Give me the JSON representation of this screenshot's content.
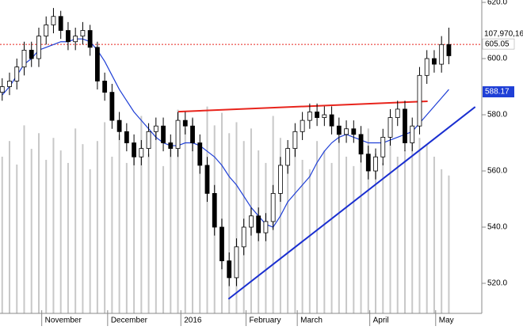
{
  "chart_data": {
    "type": "candlestick",
    "xlim": [
      -0.3,
      65.5
    ],
    "ylim": [
      509.3,
      620.85
    ],
    "yticks": [
      {
        "value": 520,
        "label": "520.0"
      },
      {
        "value": 540,
        "label": "540.0"
      },
      {
        "value": 560,
        "label": "560.0"
      },
      {
        "value": 580,
        "label": "580.0"
      },
      {
        "value": 600,
        "label": "600.0"
      },
      {
        "value": 620,
        "label": "620.0"
      }
    ],
    "xticks": [
      {
        "value": 5.4,
        "label": "November"
      },
      {
        "value": 14.4,
        "label": "December"
      },
      {
        "value": 24.4,
        "label": "2016"
      },
      {
        "value": 33.3,
        "label": "February"
      },
      {
        "value": 40.3,
        "label": "March"
      },
      {
        "value": 50.2,
        "label": "April"
      },
      {
        "value": 59.2,
        "label": "May"
      }
    ],
    "open": [
      588,
      590,
      592,
      597,
      603,
      600,
      608,
      612,
      615,
      610,
      606,
      608,
      610,
      604,
      592,
      588,
      578,
      574,
      570,
      565,
      568,
      574,
      576,
      570,
      568,
      578,
      576,
      570,
      562,
      552,
      540,
      528,
      522,
      533,
      540,
      544,
      538,
      542,
      552,
      562,
      568,
      574,
      578,
      581,
      579,
      580,
      576,
      573,
      575,
      573,
      566,
      560,
      565,
      572,
      579,
      582,
      570,
      576,
      594,
      600,
      598,
      605
    ],
    "high": [
      593,
      595,
      600,
      606,
      606,
      611,
      615,
      618,
      617,
      613,
      611,
      613,
      612,
      606,
      595,
      591,
      581,
      577,
      573,
      571,
      577,
      579,
      579,
      573,
      581,
      581,
      579,
      573,
      565,
      555,
      543,
      531,
      536,
      543,
      547,
      547,
      545,
      555,
      565,
      571,
      577,
      581,
      584,
      584,
      583,
      583,
      579,
      578,
      578,
      576,
      569,
      568,
      575,
      582,
      585,
      585,
      579,
      597,
      603,
      603,
      608,
      611
    ],
    "low": [
      585,
      587,
      589,
      594,
      597,
      597,
      605,
      609,
      607,
      603,
      603,
      605,
      601,
      589,
      585,
      575,
      571,
      567,
      562,
      562,
      565,
      571,
      567,
      565,
      565,
      573,
      567,
      559,
      549,
      537,
      525,
      519,
      519,
      530,
      537,
      535,
      535,
      539,
      549,
      559,
      565,
      571,
      575,
      576,
      576,
      573,
      570,
      570,
      570,
      563,
      557,
      557,
      562,
      569,
      576,
      567,
      567,
      573,
      591,
      595,
      595,
      598
    ],
    "close": [
      590,
      592,
      597,
      603,
      600,
      608,
      612,
      615,
      610,
      606,
      608,
      610,
      604,
      592,
      588,
      578,
      574,
      570,
      565,
      568,
      574,
      576,
      570,
      568,
      578,
      576,
      570,
      562,
      552,
      540,
      528,
      522,
      533,
      540,
      544,
      538,
      542,
      552,
      562,
      568,
      574,
      578,
      581,
      579,
      580,
      576,
      573,
      575,
      573,
      566,
      560,
      565,
      572,
      579,
      582,
      570,
      576,
      594,
      600,
      598,
      605,
      601
    ],
    "ma": {
      "color": "#1f3fd6",
      "values": [
        587,
        590,
        594,
        598,
        600,
        603,
        604,
        605,
        606,
        606,
        607,
        607,
        606,
        603,
        599,
        594,
        589,
        585,
        581,
        578,
        575,
        572,
        570,
        569,
        569,
        570,
        570,
        569,
        567,
        565,
        562,
        558,
        555,
        551,
        547,
        544,
        541,
        540,
        544,
        549,
        552,
        555,
        558,
        563,
        567,
        570,
        572,
        573,
        572,
        571,
        570,
        570,
        570,
        571,
        572,
        573,
        574,
        577,
        580,
        583,
        586,
        589
      ]
    },
    "volume": {
      "color": "#c8c8c8",
      "lim": [
        0,
        200
      ],
      "values": [
        100,
        110,
        95,
        120,
        105,
        115,
        98,
        112,
        104,
        96,
        118,
        108,
        92,
        110,
        122,
        100,
        114,
        96,
        108,
        126,
        102,
        117,
        94,
        110,
        130,
        118,
        124,
        108,
        132,
        120,
        128,
        115,
        122,
        110,
        118,
        104,
        96,
        126,
        112,
        100,
        106,
        98,
        92,
        110,
        104,
        96,
        112,
        100,
        94,
        108,
        118,
        102,
        96,
        110,
        100,
        104,
        116,
        112,
        108,
        100,
        92,
        88
      ]
    },
    "trendlines": [
      {
        "color": "#e8241c",
        "x": [
          24.05,
          58.1
        ],
        "y": [
          581.1,
          584.8
        ]
      },
      {
        "color": "#1a2fd0",
        "x": [
          30.9,
          64.6
        ],
        "y": [
          514.4,
          582.8
        ]
      }
    ],
    "last_price": 605.05,
    "last_price_color": "#e8241c",
    "volume_label": "107,970,16",
    "ma_label": 588.17
  }
}
